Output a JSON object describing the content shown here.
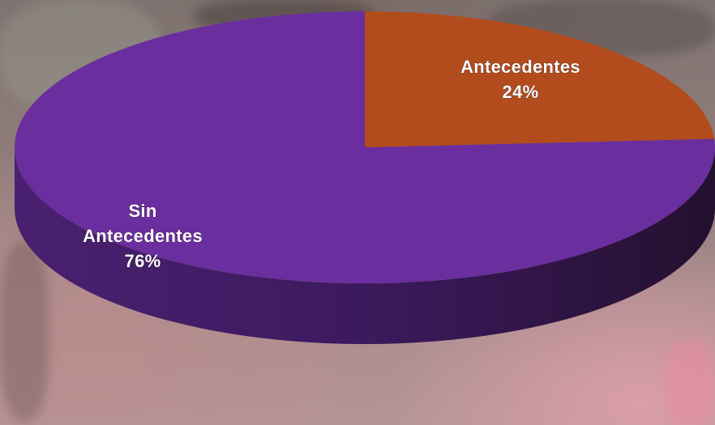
{
  "chart_data": {
    "type": "pie",
    "style": "3d",
    "categories": [
      "Antecedentes",
      "Sin Antecedentes"
    ],
    "values": [
      24,
      76
    ],
    "labels": [
      {
        "lines": [
          "Antecedentes",
          "24%"
        ]
      },
      {
        "lines": [
          "Sin",
          "Antecedentes",
          "76%"
        ]
      }
    ],
    "colors": [
      "#b34c1c",
      "#6b2e9e"
    ],
    "title": "",
    "legend": "none"
  }
}
